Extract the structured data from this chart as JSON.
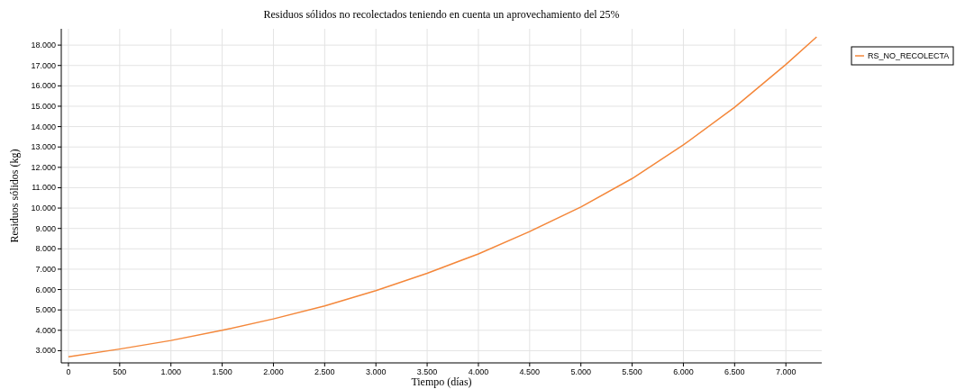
{
  "chart_data": {
    "type": "line",
    "title": "Residuos sólidos no recolectados teniendo en cuenta un aprovechamiento del 25%",
    "xlabel": "Tiempo (días)",
    "ylabel": "Residuos sólidos (kg)",
    "x": [
      0,
      500,
      1000,
      1500,
      2000,
      2500,
      3000,
      3500,
      4000,
      4500,
      5000,
      5500,
      6000,
      6500,
      7000,
      7300
    ],
    "series": [
      {
        "name": "RS_NO_RECOLECTA",
        "color": "#f4873a",
        "values": [
          2700,
          3080,
          3500,
          4000,
          4560,
          5200,
          5950,
          6800,
          7750,
          8850,
          10050,
          11450,
          13100,
          14950,
          17050,
          18400
        ]
      }
    ],
    "xlim": [
      -70,
      7350
    ],
    "ylim": [
      2400,
      18800
    ],
    "xticks": [
      0,
      500,
      {
        "value": 1000,
        "label": "1.000"
      },
      {
        "value": 1500,
        "label": "1.500"
      },
      {
        "value": 2000,
        "label": "2.000"
      },
      {
        "value": 2500,
        "label": "2.500"
      },
      {
        "value": 3000,
        "label": "3.000"
      },
      {
        "value": 3500,
        "label": "3.500"
      },
      {
        "value": 4000,
        "label": "4.000"
      },
      {
        "value": 4500,
        "label": "4.500"
      },
      {
        "value": 5000,
        "label": "5.000"
      },
      {
        "value": 5500,
        "label": "5.500"
      },
      {
        "value": 6000,
        "label": "6.000"
      },
      {
        "value": 6500,
        "label": "6.500"
      },
      {
        "value": 7000,
        "label": "7.000"
      }
    ],
    "yticks": [
      {
        "value": 3000,
        "label": "3.000"
      },
      {
        "value": 4000,
        "label": "4.000"
      },
      {
        "value": 5000,
        "label": "5.000"
      },
      {
        "value": 6000,
        "label": "6.000"
      },
      {
        "value": 7000,
        "label": "7.000"
      },
      {
        "value": 8000,
        "label": "8.000"
      },
      {
        "value": 9000,
        "label": "9.000"
      },
      {
        "value": 10000,
        "label": "10.000"
      },
      {
        "value": 11000,
        "label": "11.000"
      },
      {
        "value": 12000,
        "label": "12.000"
      },
      {
        "value": 13000,
        "label": "13.000"
      },
      {
        "value": 14000,
        "label": "14.000"
      },
      {
        "value": 15000,
        "label": "15.000"
      },
      {
        "value": 16000,
        "label": "16.000"
      },
      {
        "value": 17000,
        "label": "17.000"
      },
      {
        "value": 18000,
        "label": "18.000"
      }
    ],
    "grid": true,
    "legend": "top right",
    "marker": "none",
    "line_style": "solid"
  }
}
